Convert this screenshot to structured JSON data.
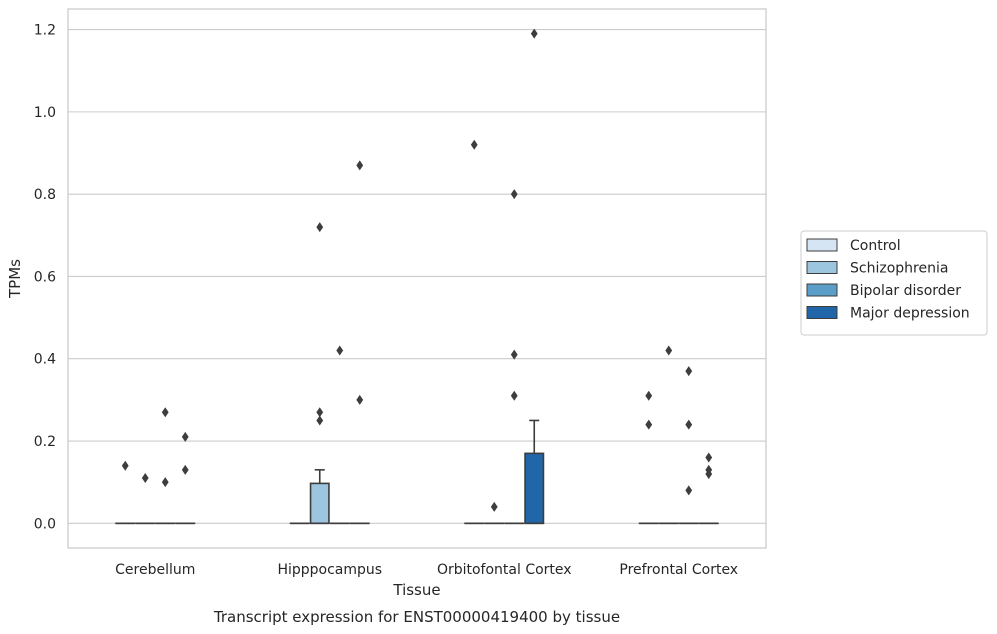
{
  "chart_data": {
    "type": "box",
    "title": "",
    "caption": "Transcript expression for ENST00000419400 by tissue",
    "xlabel": "Tissue",
    "ylabel": "TPMs",
    "ylim": [
      -0.06,
      1.25
    ],
    "yticks": [
      "0.0",
      "0.2",
      "0.4",
      "0.6",
      "0.8",
      "1.0",
      "1.2"
    ],
    "categories": [
      "Cerebellum",
      "Hipppocampus",
      "Orbitofontal Cortex",
      "Prefrontal Cortex"
    ],
    "grid": "horizontal",
    "legend_position": "right",
    "series": [
      {
        "name": "Control",
        "color": "#d6e5f3",
        "boxes": [
          {
            "q1": 0,
            "median": 0,
            "q3": 0,
            "whisker_low": 0,
            "whisker_high": 0,
            "outliers": [
              0.14
            ]
          },
          {
            "q1": 0,
            "median": 0,
            "q3": 0,
            "whisker_low": 0,
            "whisker_high": 0,
            "outliers": []
          },
          {
            "q1": 0,
            "median": 0,
            "q3": 0,
            "whisker_low": 0,
            "whisker_high": 0,
            "outliers": [
              0.92
            ]
          },
          {
            "q1": 0,
            "median": 0,
            "q3": 0,
            "whisker_low": 0,
            "whisker_high": 0,
            "outliers": [
              0.31,
              0.24
            ]
          }
        ]
      },
      {
        "name": "Schizophrenia",
        "color": "#9cc6e0",
        "boxes": [
          {
            "q1": 0,
            "median": 0,
            "q3": 0,
            "whisker_low": 0,
            "whisker_high": 0,
            "outliers": [
              0.11
            ]
          },
          {
            "q1": 0,
            "median": 0,
            "q3": 0.097,
            "whisker_low": 0,
            "whisker_high": 0.13,
            "outliers": [
              0.72,
              0.27,
              0.25
            ]
          },
          {
            "q1": 0,
            "median": 0,
            "q3": 0,
            "whisker_low": 0,
            "whisker_high": 0,
            "outliers": [
              0.04
            ]
          },
          {
            "q1": 0,
            "median": 0,
            "q3": 0,
            "whisker_low": 0,
            "whisker_high": 0,
            "outliers": [
              0.42
            ]
          }
        ]
      },
      {
        "name": "Bipolar disorder",
        "color": "#5a9ec9",
        "boxes": [
          {
            "q1": 0,
            "median": 0,
            "q3": 0,
            "whisker_low": 0,
            "whisker_high": 0,
            "outliers": [
              0.27,
              0.1
            ]
          },
          {
            "q1": 0,
            "median": 0,
            "q3": 0,
            "whisker_low": 0,
            "whisker_high": 0,
            "outliers": [
              0.42
            ]
          },
          {
            "q1": 0,
            "median": 0,
            "q3": 0,
            "whisker_low": 0,
            "whisker_high": 0,
            "outliers": [
              0.8,
              0.41,
              0.31
            ]
          },
          {
            "q1": 0,
            "median": 0,
            "q3": 0,
            "whisker_low": 0,
            "whisker_high": 0,
            "outliers": [
              0.37,
              0.24,
              0.08
            ]
          }
        ]
      },
      {
        "name": "Major depression",
        "color": "#2066a8",
        "boxes": [
          {
            "q1": 0,
            "median": 0,
            "q3": 0,
            "whisker_low": 0,
            "whisker_high": 0,
            "outliers": [
              0.21,
              0.13
            ]
          },
          {
            "q1": 0,
            "median": 0,
            "q3": 0,
            "whisker_low": 0,
            "whisker_high": 0,
            "outliers": [
              0.87,
              0.3
            ]
          },
          {
            "q1": 0,
            "median": 0,
            "q3": 0.17,
            "whisker_low": 0,
            "whisker_high": 0.25,
            "outliers": [
              1.19
            ]
          },
          {
            "q1": 0,
            "median": 0,
            "q3": 0,
            "whisker_low": 0,
            "whisker_high": 0,
            "outliers": [
              0.16,
              0.13,
              0.12
            ]
          }
        ]
      }
    ]
  }
}
